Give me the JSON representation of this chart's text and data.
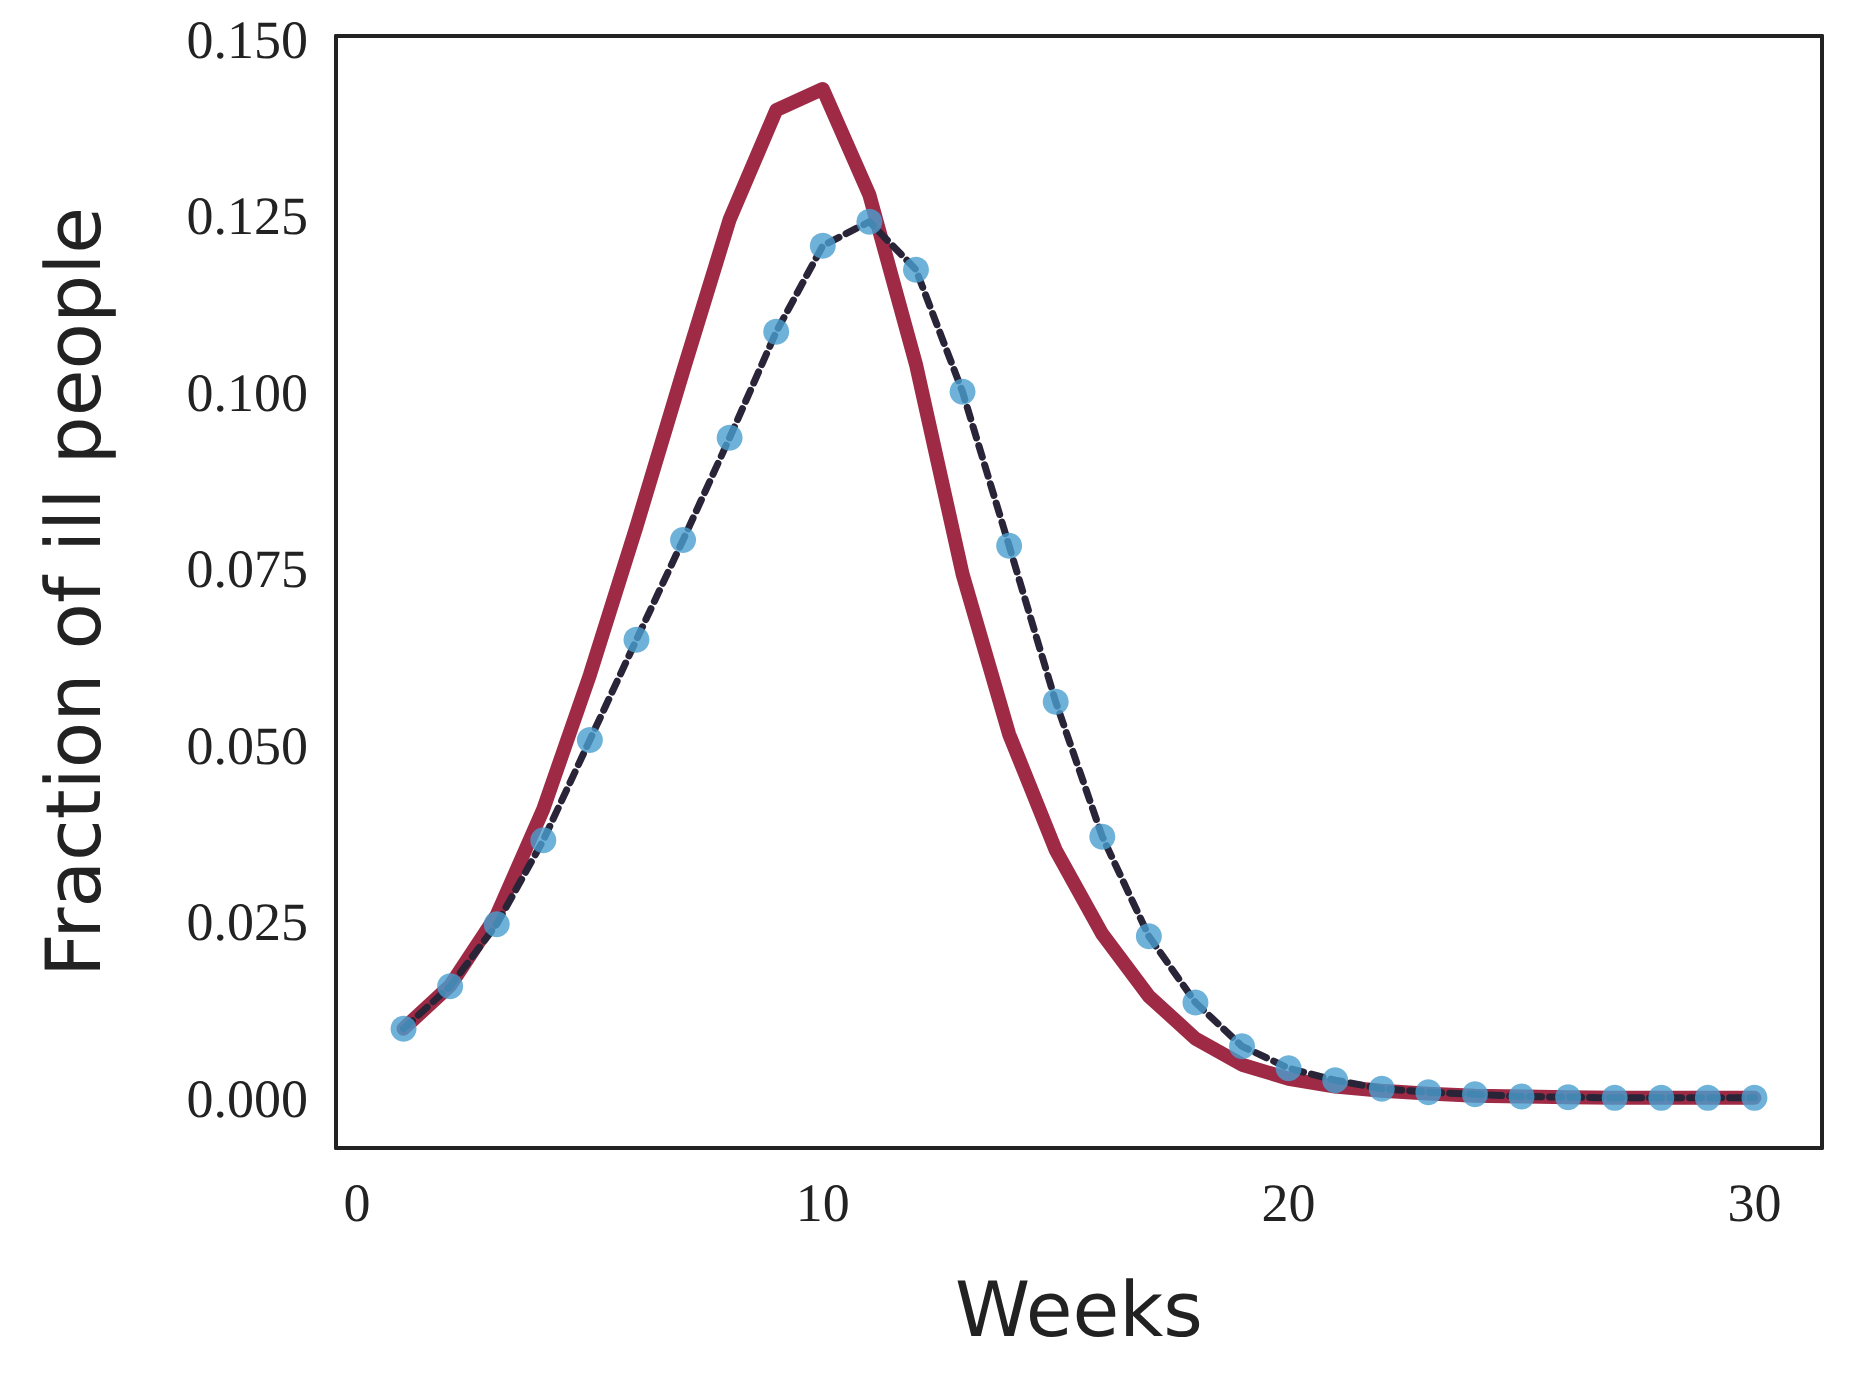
{
  "chart_data": {
    "type": "line",
    "xlabel": "Weeks",
    "ylabel": "Fraction of ill people",
    "x": [
      1,
      2,
      3,
      4,
      5,
      6,
      7,
      8,
      9,
      10,
      11,
      12,
      13,
      14,
      15,
      16,
      17,
      18,
      19,
      20,
      21,
      22,
      23,
      24,
      25,
      26,
      27,
      28,
      29,
      30
    ],
    "series": [
      {
        "color": "#9e2a45",
        "line_style": "solid",
        "marker": "none",
        "values": [
          0.0099,
          0.016,
          0.026,
          0.041,
          0.06,
          0.081,
          0.103,
          0.1245,
          0.14,
          0.143,
          0.128,
          0.104,
          0.0743,
          0.0516,
          0.0352,
          0.0233,
          0.0145,
          0.0085,
          0.0048,
          0.0028,
          0.0017,
          0.0011,
          0.0007,
          0.0004,
          0.0003,
          0.0002,
          0.0001,
          0.0001,
          0.0001,
          0.0001
        ]
      },
      {
        "type": "scatter",
        "color": "#4a9fcf",
        "marker": "circle",
        "values": [
          0.0099,
          0.0159,
          0.0247,
          0.0366,
          0.0508,
          0.065,
          0.0791,
          0.0936,
          0.1086,
          0.1208,
          0.1242,
          0.1174,
          0.1001,
          0.0783,
          0.0562,
          0.0371,
          0.023,
          0.0136,
          0.0074,
          0.0043,
          0.0026,
          0.0014,
          0.0009,
          0.0006,
          0.0003,
          0.0002,
          0.0001,
          0.0001,
          0.0001,
          0.0001
        ]
      },
      {
        "color": "#2a2438",
        "line_style": "dashed",
        "marker": "none",
        "values": [
          0.0099,
          0.0159,
          0.0247,
          0.0366,
          0.0508,
          0.065,
          0.0791,
          0.0936,
          0.1086,
          0.1208,
          0.1242,
          0.1174,
          0.1001,
          0.0783,
          0.0562,
          0.0371,
          0.023,
          0.0136,
          0.0074,
          0.0043,
          0.0026,
          0.0014,
          0.0009,
          0.0006,
          0.0003,
          0.0002,
          0.0001,
          0.0001,
          0.0001,
          0.0001
        ]
      }
    ],
    "xlim": [
      -0.45,
      31.45
    ],
    "xticks": [
      0,
      10,
      20,
      30
    ],
    "ylim": [
      -0.007,
      0.1505
    ],
    "yticks": [
      {
        "value": 0,
        "label": "0.000"
      },
      {
        "value": 0.025,
        "label": "0.025"
      },
      {
        "value": 0.05,
        "label": "0.050"
      },
      {
        "value": 0.075,
        "label": "0.075"
      },
      {
        "value": 0.1,
        "label": "0.100"
      },
      {
        "value": 0.125,
        "label": "0.125"
      },
      {
        "value": 0.15,
        "label": "0.150"
      }
    ],
    "grid": false
  }
}
